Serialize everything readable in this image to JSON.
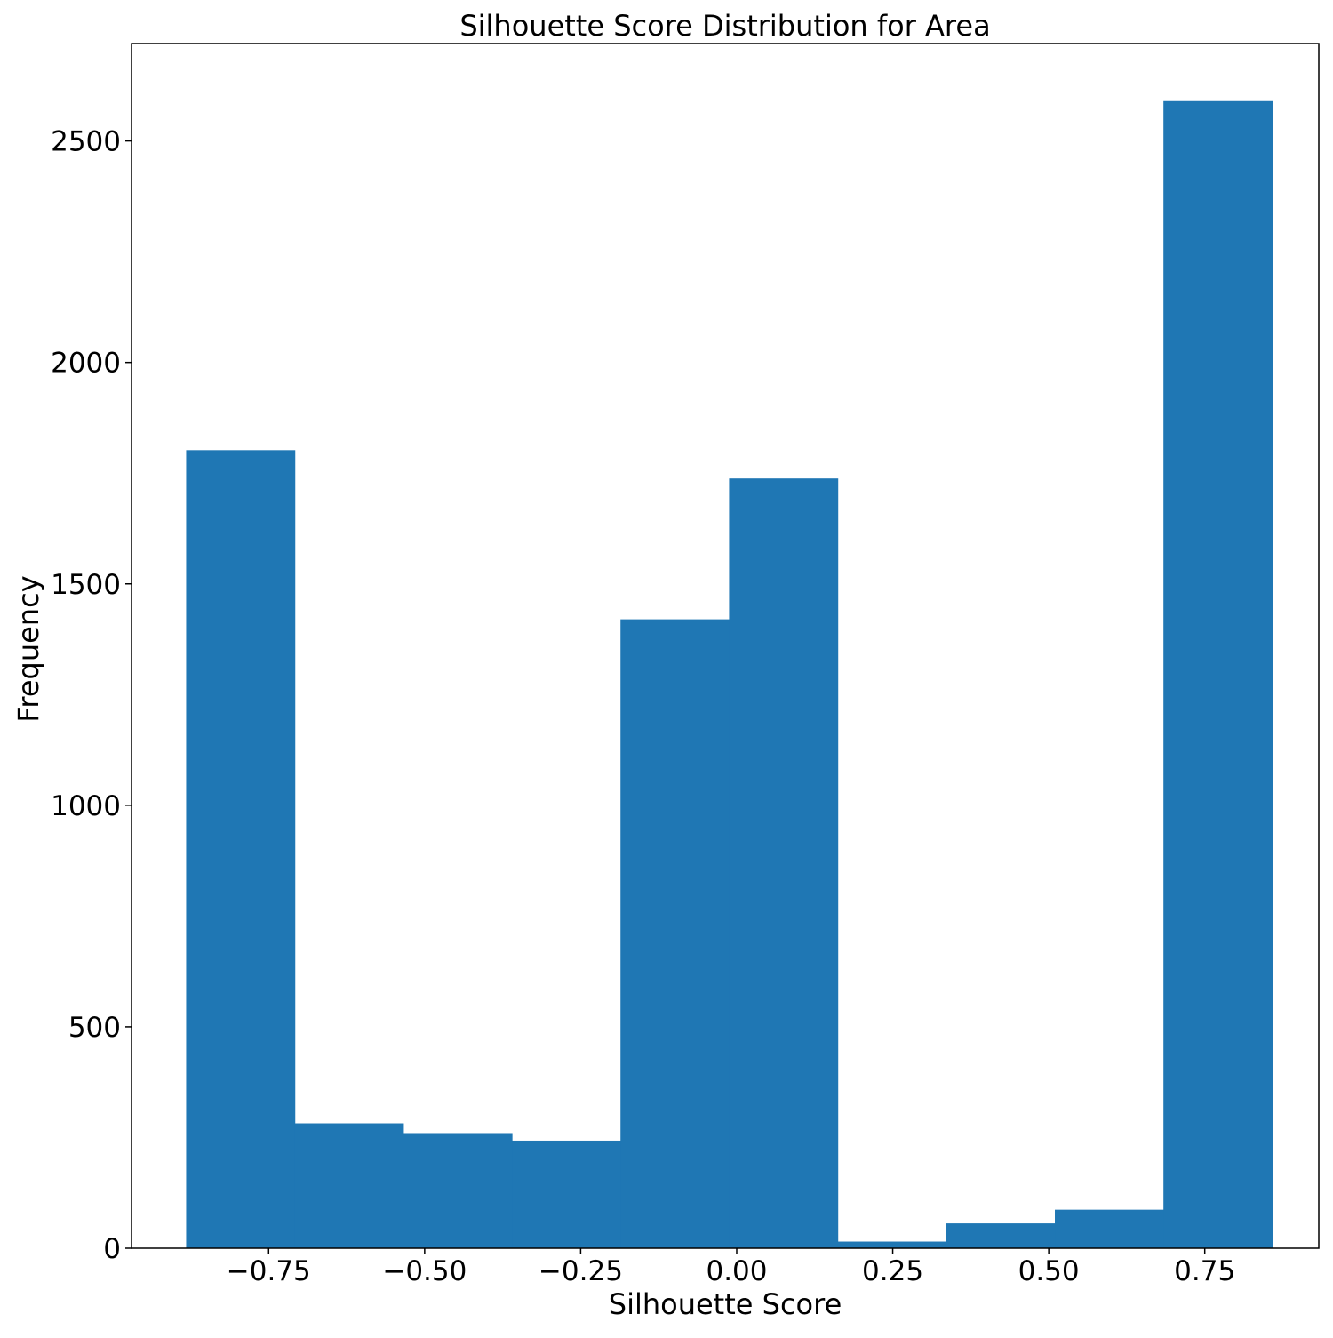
{
  "chart_data": {
    "type": "bar",
    "title": "Silhouette Score Distribution for Area",
    "xlabel": "Silhouette Score",
    "ylabel": "Frequency",
    "bin_edges": [
      -0.8822,
      -0.7082,
      -0.5342,
      -0.3602,
      -0.1862,
      -0.0122,
      0.1618,
      0.3358,
      0.5098,
      0.6838,
      0.8578
    ],
    "values": [
      1802,
      282,
      260,
      243,
      1420,
      1738,
      15,
      56,
      87,
      2590
    ],
    "xlim": [
      -0.9697,
      0.9327
    ],
    "ylim": [
      0,
      2720
    ],
    "xticks": [
      -0.75,
      -0.5,
      -0.25,
      0.0,
      0.25,
      0.5,
      0.75
    ],
    "xtick_labels": [
      "−0.75",
      "−0.50",
      "−0.25",
      "0.00",
      "0.25",
      "0.50",
      "0.75"
    ],
    "yticks": [
      0,
      500,
      1000,
      1500,
      2000,
      2500
    ],
    "ytick_labels": [
      "0",
      "500",
      "1000",
      "1500",
      "2000",
      "2500"
    ],
    "bar_color": "#1f77b4",
    "grid": false,
    "legend": false
  }
}
